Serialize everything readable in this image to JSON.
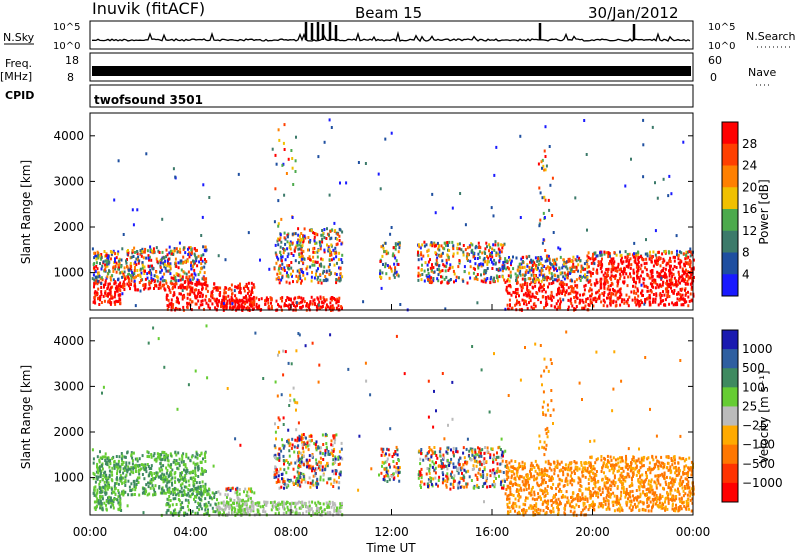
{
  "header": {
    "title": "Inuvik (fitACF)",
    "beam": "Beam 15",
    "date": "30/Jan/2012"
  },
  "panels": {
    "nsky": {
      "left_label": "N.Sky",
      "right_label": "N.Search",
      "tick_top": "10^5",
      "tick_bottom": "10^0"
    },
    "freq": {
      "left_label": "Freq.",
      "unit": "[MHz]",
      "tick_top": "18",
      "tick_bottom": "8",
      "right_label": "Nave",
      "right_tick_top": "60",
      "right_tick_bottom": "0"
    },
    "cpid": {
      "left_label": "CPID",
      "program": "twofsound 3501"
    }
  },
  "chart_data": [
    {
      "type": "heatmap",
      "name_in_image": "power",
      "ylabel": "Slant Range [km]",
      "yticks": [
        "1000",
        "2000",
        "3000",
        "4000"
      ],
      "ylim": [
        180,
        4500
      ],
      "colorbar_label": "Power [dB]",
      "colorbar_ticks": [
        "4",
        "8",
        "12",
        "16",
        "20",
        "24",
        "28"
      ],
      "colors": [
        "#1a1aff",
        "#1f4fa0",
        "#3c7a6a",
        "#4daa4d",
        "#f0c000",
        "#ff8000",
        "#ff4000",
        "#ff0000"
      ]
    },
    {
      "type": "heatmap",
      "name_in_image": "velocity",
      "ylabel": "Slant Range [km]",
      "yticks": [
        "1000",
        "2000",
        "3000",
        "4000"
      ],
      "ylim": [
        180,
        4500
      ],
      "xlabel": "Time UT",
      "xticks": [
        "00:00",
        "04:00",
        "08:00",
        "12:00",
        "16:00",
        "20:00",
        "00:00"
      ],
      "colorbar_label": "Velocity [m s⁻¹]",
      "colorbar_ticks": [
        "1000",
        "500",
        "100",
        "25",
        "−25",
        "−100",
        "−500",
        "−1000"
      ],
      "colors": [
        "#1a1ab0",
        "#2f5fa0",
        "#3f8a60",
        "#66cc33",
        "#bbbbbb",
        "#ffaa00",
        "#ff7700",
        "#ff3300",
        "#ff0000"
      ]
    }
  ]
}
